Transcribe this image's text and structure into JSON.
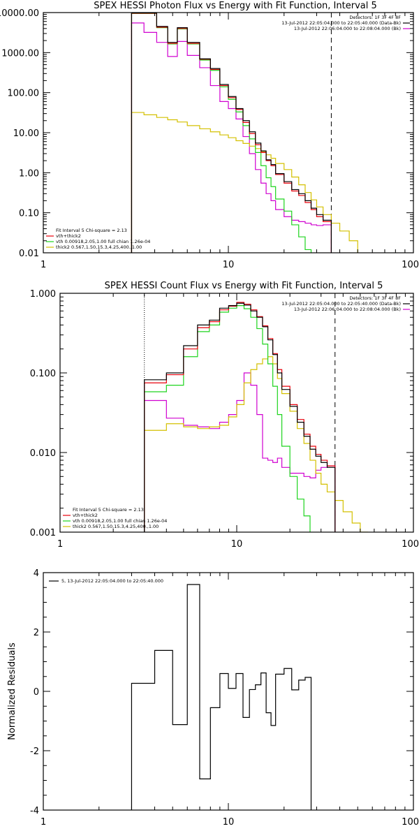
{
  "colors": {
    "data": "#000000",
    "total": "#e8000b",
    "thermal": "#1ed41e",
    "thick": "#d4c000",
    "background": "#d000d0",
    "frame": "#000000"
  },
  "chart_data": [
    {
      "type": "line",
      "scale": "loglog",
      "title": "SPEX HESSI Photon Flux vs Energy with Fit Function, Interval 5",
      "xlabel": "",
      "ylabel": "",
      "xlim": [
        1,
        100
      ],
      "ylim": [
        0.01,
        10000
      ],
      "xticks": [
        1,
        10,
        100
      ],
      "xticklabels": [
        "1",
        "10",
        "100"
      ],
      "yticks": [
        0.01,
        0.1,
        1,
        10,
        100,
        1000,
        10000
      ],
      "yticklabels": [
        "0.01",
        "0.10",
        "1.00",
        "10.00",
        "100.00",
        "1000.00",
        "10000.00"
      ],
      "vlines": [
        {
          "x": 3,
          "style": "dotted"
        },
        {
          "x": 36,
          "style": "dashed"
        }
      ],
      "header": [
        "Detectors: 1F 3F 4F 8F",
        "13-Jul-2012 22:05:04.000 to 22:05:40.000 (Data-Bk)",
        "13-Jul-2012 22:06:04.000 to 22:08:04.000 (Bk)"
      ],
      "header_key_colors": [
        "#000000",
        "#d000d0"
      ],
      "legend": [
        "Fit Interval 5   Chi-square = 2.13",
        "vth+thick2",
        "vth 0.00918,2.05,1.00  full chian 1.26e-04",
        "thick2 0.567,1.50,15.3,4.25,400.,1.00"
      ],
      "edges": [
        3,
        3.5,
        4.1,
        4.7,
        5.3,
        6.0,
        7.0,
        8.0,
        9.0,
        10.0,
        11.0,
        12.0,
        13.0,
        14.0,
        15.0,
        16.0,
        17.0,
        18.0,
        20.0,
        22.0,
        24.0,
        26.0,
        28.0,
        30.0,
        32.5,
        36.0,
        40.0,
        45.0,
        50.0
      ],
      "series": [
        {
          "name": "data",
          "color_key": "data",
          "values": [
            9800,
            9800,
            4500,
            1800,
            4200,
            1800,
            700,
            400,
            160,
            80,
            40,
            20,
            10.5,
            5.5,
            3.5,
            2.1,
            1.6,
            0.95,
            0.6,
            0.38,
            0.3,
            0.2,
            0.13,
            0.09,
            0.065,
            null,
            null,
            null
          ]
        },
        {
          "name": "vth+thick2",
          "color_key": "total",
          "values": [
            9600,
            9600,
            4300,
            1700,
            4000,
            1700,
            680,
            380,
            150,
            75,
            38,
            18,
            9.5,
            5.0,
            3.2,
            2.0,
            1.5,
            0.9,
            0.55,
            0.35,
            0.27,
            0.18,
            0.12,
            0.08,
            0.06,
            null,
            null,
            null
          ]
        },
        {
          "name": "vth",
          "color_key": "thermal",
          "values": [
            9500,
            9500,
            4200,
            1650,
            3900,
            1650,
            650,
            360,
            140,
            68,
            33,
            15,
            7.0,
            3.2,
            1.5,
            0.75,
            0.45,
            0.22,
            0.11,
            0.05,
            0.025,
            0.012,
            null,
            null,
            null,
            null,
            null,
            null
          ]
        },
        {
          "name": "thick2",
          "color_key": "thick",
          "values": [
            32,
            28,
            24,
            21,
            18.5,
            15,
            12.5,
            10.5,
            8.8,
            7.5,
            6.3,
            5.4,
            4.6,
            4.0,
            3.4,
            2.8,
            2.3,
            1.7,
            1.2,
            0.78,
            0.5,
            0.32,
            0.21,
            0.14,
            0.09,
            0.055,
            0.035,
            0.02
          ]
        },
        {
          "name": "background",
          "color_key": "background",
          "values": [
            5500,
            3200,
            1800,
            800,
            1900,
            850,
            420,
            150,
            60,
            40,
            22,
            8,
            3.0,
            1.2,
            0.55,
            0.3,
            0.2,
            0.12,
            0.08,
            0.065,
            0.06,
            0.055,
            0.05,
            0.048,
            0.05,
            null,
            null,
            null
          ]
        }
      ]
    },
    {
      "type": "line",
      "scale": "loglog",
      "title": "SPEX HESSI Count Flux vs Energy with Fit Function, Interval 5",
      "xlabel": "",
      "ylabel": "",
      "xlim": [
        1,
        100
      ],
      "ylim": [
        0.001,
        1
      ],
      "xticks": [
        1,
        10,
        100
      ],
      "xticklabels": [
        "1",
        "10",
        "100"
      ],
      "yticks": [
        0.001,
        0.01,
        0.1,
        1
      ],
      "yticklabels": [
        "0.001",
        "0.010",
        "0.100",
        "1.000"
      ],
      "vlines": [
        {
          "x": 3,
          "style": "dotted"
        },
        {
          "x": 36,
          "style": "dashed"
        }
      ],
      "header": [
        "Detectors: 1F 3F 4F 8F",
        "13-Jul-2012 22:05:04.000 to 22:05:40.000 (Data-Bk)",
        "13-Jul-2012 22:06:04.000 to 22:08:04.000 (Bk)"
      ],
      "header_key_colors": [
        "#000000",
        "#d000d0"
      ],
      "legend": [
        "Fit Interval 5   Chi-square = 2.13",
        "vth+thick2",
        "vth 0.00918,2.05,1.00  full chian 1.26e-04",
        "thick2 0.567,1.50,15.3,4.25,400.,1.00"
      ],
      "edges": [
        3,
        4,
        5,
        6,
        7,
        8,
        9,
        10,
        11,
        12,
        13,
        14,
        15,
        16,
        17,
        18,
        20,
        22,
        24,
        26,
        28,
        30,
        32.5,
        36,
        40,
        45,
        50,
        55,
        60
      ],
      "series": [
        {
          "name": "data",
          "color_key": "data",
          "values": [
            0.082,
            0.1,
            0.22,
            0.4,
            0.46,
            0.65,
            0.7,
            0.75,
            0.71,
            0.6,
            0.5,
            0.38,
            0.26,
            0.17,
            0.1,
            0.062,
            0.038,
            0.024,
            0.016,
            0.011,
            0.009,
            0.0075,
            0.0065,
            null,
            null,
            null,
            null,
            null
          ]
        },
        {
          "name": "vth+thick2",
          "color_key": "total",
          "values": [
            0.075,
            0.095,
            0.2,
            0.37,
            0.44,
            0.62,
            0.69,
            0.77,
            0.73,
            0.62,
            0.51,
            0.39,
            0.27,
            0.175,
            0.11,
            0.068,
            0.04,
            0.026,
            0.017,
            0.012,
            0.0095,
            0.008,
            0.0068,
            null,
            null,
            null,
            null,
            null
          ]
        },
        {
          "name": "vth",
          "color_key": "thermal",
          "values": [
            0.058,
            0.07,
            0.16,
            0.33,
            0.4,
            0.58,
            0.65,
            0.7,
            0.64,
            0.5,
            0.36,
            0.23,
            0.13,
            0.068,
            0.03,
            0.012,
            0.005,
            0.0026,
            0.0016,
            null,
            null,
            null,
            null,
            null,
            null,
            null,
            null,
            null
          ]
        },
        {
          "name": "thick2",
          "color_key": "thick",
          "values": [
            0.019,
            0.023,
            0.021,
            0.02,
            0.021,
            0.022,
            0.028,
            0.04,
            0.075,
            0.11,
            0.13,
            0.15,
            0.16,
            0.13,
            0.085,
            0.055,
            0.033,
            0.02,
            0.013,
            0.008,
            0.0055,
            0.004,
            0.0032,
            0.0025,
            0.0018,
            0.0013,
            0.001,
            null
          ]
        },
        {
          "name": "background",
          "color_key": "background",
          "values": [
            0.045,
            0.027,
            0.022,
            0.021,
            0.02,
            0.024,
            0.03,
            0.045,
            0.1,
            0.07,
            0.03,
            0.0085,
            0.008,
            0.0075,
            0.0085,
            0.0065,
            0.0055,
            0.0055,
            0.005,
            0.0048,
            0.006,
            0.0065,
            0.0068,
            null,
            null,
            null,
            null,
            null
          ]
        }
      ]
    },
    {
      "type": "line",
      "scale": "logx",
      "title": "",
      "xlabel": "",
      "ylabel": "Normalized Residuals",
      "xlim": [
        1,
        100
      ],
      "ylim": [
        -4,
        4
      ],
      "xticks": [
        1,
        10,
        100
      ],
      "xticklabels": [
        "1",
        "10",
        "100"
      ],
      "yticks": [
        -4,
        -2,
        0,
        2,
        4
      ],
      "yticklabels": [
        "-4",
        "-2",
        "0",
        "2",
        "4"
      ],
      "legend": [
        "5, 13-Jul-2012 22:05:04.000 to 22:05:40.000"
      ],
      "edges": [
        3,
        4,
        5,
        6,
        7,
        8,
        9,
        10,
        11,
        12,
        13,
        14,
        15,
        16,
        17,
        18,
        20,
        22,
        24,
        26,
        28,
        30,
        32.5,
        36
      ],
      "series": [
        {
          "name": "residuals",
          "color_key": "data",
          "values": [
            0.27,
            1.38,
            -1.12,
            3.6,
            -2.95,
            -0.55,
            0.6,
            0.1,
            0.6,
            -0.88,
            0.06,
            0.22,
            0.62,
            -0.72,
            -1.15,
            0.58,
            0.77,
            0.05,
            0.38,
            0.47,
            null,
            null,
            null
          ]
        }
      ]
    }
  ]
}
